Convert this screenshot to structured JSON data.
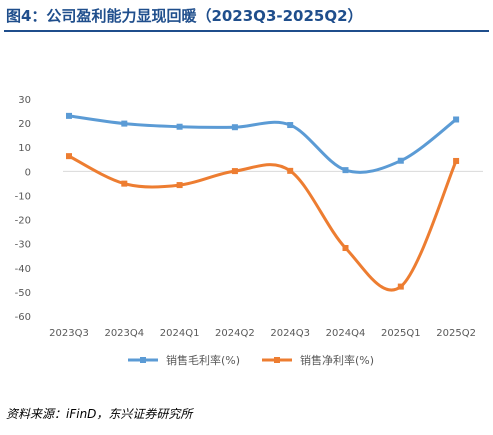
{
  "title": "图4：公司盈利能力显现回暖（2023Q3-2025Q2）",
  "source": "资料来源：iFinD，东兴证券研究所",
  "chart_data": {
    "type": "line",
    "categories": [
      "2023Q3",
      "2023Q4",
      "2024Q1",
      "2024Q2",
      "2024Q3",
      "2024Q4",
      "2025Q1",
      "2025Q2"
    ],
    "y_ticks": [
      "30",
      "20",
      "10",
      "0",
      "-10",
      "-20",
      "-30",
      "-40",
      "-50",
      "-60"
    ],
    "ylim": [
      -60,
      30
    ],
    "ytick_step": 10,
    "grid": false,
    "legend_position": "bottom",
    "smooth": true,
    "series": [
      {
        "name": "销售毛利率(%)",
        "color": "#5b9bd5",
        "values": [
          23.0,
          19.8,
          18.5,
          18.3,
          19.2,
          0.5,
          4.4,
          21.5
        ]
      },
      {
        "name": "销售净利率(%)",
        "color": "#ed7d31",
        "values": [
          6.3,
          -5.1,
          -5.7,
          0.1,
          0.2,
          -31.8,
          -47.8,
          4.3
        ]
      }
    ]
  }
}
